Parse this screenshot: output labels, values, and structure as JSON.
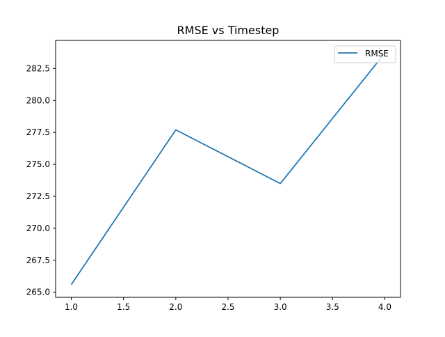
{
  "chart_data": {
    "type": "line",
    "title": "RMSE vs Timestep",
    "xlabel": "",
    "ylabel": "",
    "xlim": [
      0.85,
      4.15
    ],
    "ylim": [
      264.6,
      284.7
    ],
    "xticks": [
      1.0,
      1.5,
      2.0,
      2.5,
      3.0,
      3.5,
      4.0
    ],
    "xtick_labels": [
      "1.0",
      "1.5",
      "2.0",
      "2.5",
      "3.0",
      "3.5",
      "4.0"
    ],
    "yticks": [
      265.0,
      267.5,
      270.0,
      272.5,
      275.0,
      277.5,
      280.0,
      282.5
    ],
    "ytick_labels": [
      "265.0",
      "267.5",
      "270.0",
      "272.5",
      "275.0",
      "277.5",
      "280.0",
      "282.5"
    ],
    "grid": false,
    "legend": {
      "position": "upper right",
      "entries": [
        "RMSE"
      ]
    },
    "x": [
      1,
      2,
      3,
      4
    ],
    "series": [
      {
        "name": "RMSE",
        "color": "#1f77b4",
        "values": [
          265.6,
          277.7,
          273.5,
          283.7
        ]
      }
    ]
  }
}
